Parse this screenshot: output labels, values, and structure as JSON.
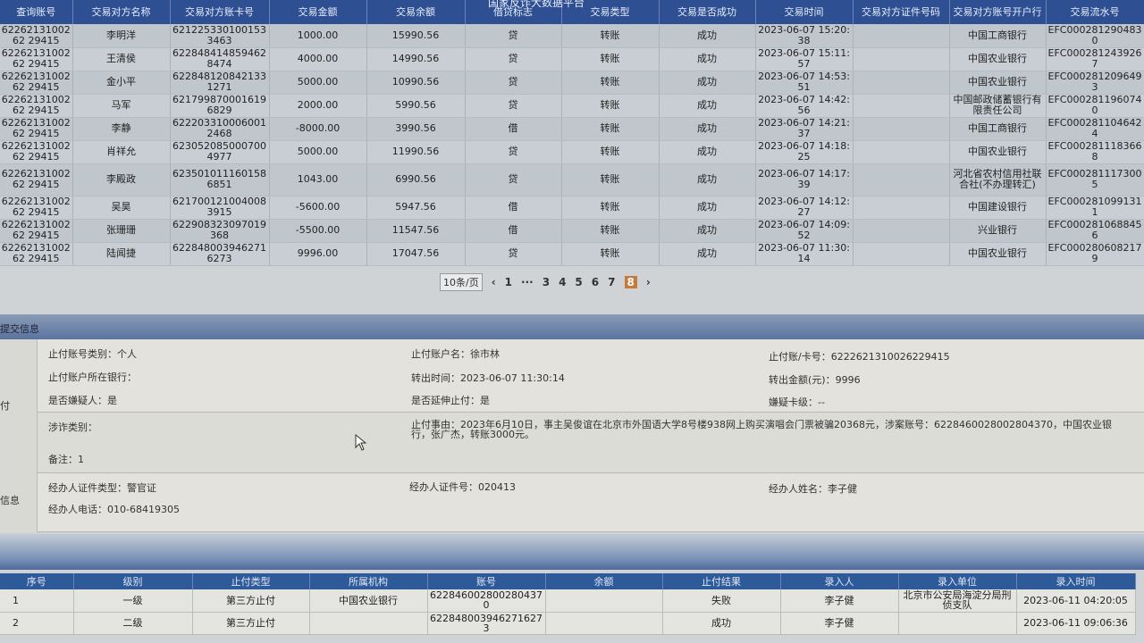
{
  "page_title_partial": "国家反诈大数据平台",
  "transactions": {
    "headers": [
      "查询账号",
      "交易对方名称",
      "交易对方账卡号",
      "交易金额",
      "交易余额",
      "借贷标志",
      "交易类型",
      "交易是否成功",
      "交易时间",
      "交易对方证件号码",
      "交易对方账号开户行",
      "交易流水号"
    ],
    "rows": [
      [
        "6226213100262 29415",
        "李明洋",
        "6212253301001533463",
        "1000.00",
        "15990.56",
        "贷",
        "转账",
        "成功",
        "2023-06-07 15:20:38",
        "",
        "中国工商银行",
        "EFC0002812904830"
      ],
      [
        "6226213100262 29415",
        "王清侯",
        "6228484148594628474",
        "4000.00",
        "14990.56",
        "贷",
        "转账",
        "成功",
        "2023-06-07 15:11:57",
        "",
        "中国农业银行",
        "EFC0002812439267"
      ],
      [
        "6226213100262 29415",
        "金小平",
        "6228481208421331271",
        "5000.00",
        "10990.56",
        "贷",
        "转账",
        "成功",
        "2023-06-07 14:53:51",
        "",
        "中国农业银行",
        "EFC0002812096493"
      ],
      [
        "6226213100262 29415",
        "马军",
        "6217998700016196829",
        "2000.00",
        "5990.56",
        "贷",
        "转账",
        "成功",
        "2023-06-07 14:42:56",
        "",
        "中国邮政储蓄银行有限责任公司",
        "EFC0002811960740"
      ],
      [
        "6226213100262 29415",
        "李静",
        "6222033100060012468",
        "-8000.00",
        "3990.56",
        "借",
        "转账",
        "成功",
        "2023-06-07 14:21:37",
        "",
        "中国工商银行",
        "EFC0002811046424"
      ],
      [
        "6226213100262 29415",
        "肖祥允",
        "6230520850007004977",
        "5000.00",
        "11990.56",
        "贷",
        "转账",
        "成功",
        "2023-06-07 14:18:25",
        "",
        "中国农业银行",
        "EFC0002811183668"
      ],
      [
        "6226213100262 29415",
        "李殿政",
        "6235010111601586851",
        "1043.00",
        "6990.56",
        "贷",
        "转账",
        "成功",
        "2023-06-07 14:17:39",
        "",
        "河北省农村信用社联合社(不办理转汇)",
        "EFC0002811173005"
      ],
      [
        "6226213100262 29415",
        "吴昊",
        "6217001210040083915",
        "-5600.00",
        "5947.56",
        "借",
        "转账",
        "成功",
        "2023-06-07 14:12:27",
        "",
        "中国建设银行",
        "EFC0002810991311"
      ],
      [
        "6226213100262 29415",
        "张珊珊",
        "622908323097019368",
        "-5500.00",
        "11547.56",
        "借",
        "转账",
        "成功",
        "2023-06-07 14:09:52",
        "",
        "兴业银行",
        "EFC0002810688456"
      ],
      [
        "6226213100262 29415",
        "陆闻捷",
        "6228480039462716273",
        "9996.00",
        "17047.56",
        "贷",
        "转账",
        "成功",
        "2023-06-07 11:30:14",
        "",
        "中国农业银行",
        "EFC0002806082179"
      ]
    ]
  },
  "pager": {
    "page_size": "10条/页",
    "first": "1",
    "ellipsis": "···",
    "pages": [
      "3",
      "4",
      "5",
      "6",
      "7",
      "8"
    ],
    "current": "8",
    "prev": "‹",
    "next": "›"
  },
  "detail": {
    "band_title": "提交信息",
    "side_labels": [
      "付",
      "信息"
    ],
    "account_type": "止付账号类别：个人",
    "account_name": "止付账户名：徐市林",
    "account_no": "止付账/卡号：6222621310026229415",
    "bank": "止付账户所在银行：",
    "out_time": "转出时间：2023-06-07 11:30:14",
    "out_amount": "转出金额(元)：9996",
    "suspect": "是否嫌疑人：是",
    "extend": "是否延伸止付：是",
    "card_level": "嫌疑卡级：--",
    "fraud_type": "涉诈类别：",
    "reason": "止付事由：2023年6月10日，事主吴俊谊在北京市外国语大学8号楼938网上购买演唱会门票被骗20368元，涉案账号：6228460028002804370，中国农业银行，张广杰，转账3000元。",
    "remark": "备注：1",
    "handler_id_type": "经办人证件类型：警官证",
    "handler_id": "经办人证件号：020413",
    "handler_name": "经办人姓名：李子健",
    "handler_phone": "经办人电话：010-68419305"
  },
  "stops": {
    "headers": [
      "序号",
      "级别",
      "止付类型",
      "所属机构",
      "账号",
      "余额",
      "止付结果",
      "录入人",
      "录入单位",
      "录入时间"
    ],
    "rows": [
      [
        "1",
        "一级",
        "第三方止付",
        "中国农业银行",
        "6228460028002804370",
        "",
        "失败",
        "李子健",
        "北京市公安局海淀分局刑侦支队",
        "2023-06-11 04:20:05"
      ],
      [
        "2",
        "二级",
        "第三方止付",
        "",
        "6228480039462716273",
        "",
        "成功",
        "李子健",
        "",
        "2023-06-11 09:06:36"
      ]
    ]
  }
}
